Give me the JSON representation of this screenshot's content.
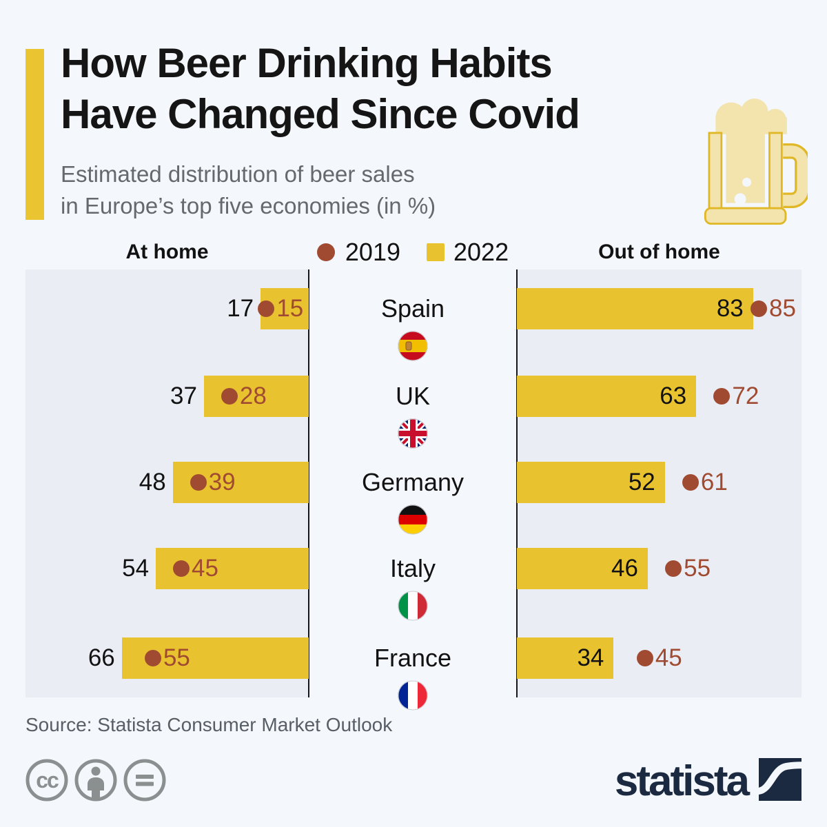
{
  "header": {
    "title_line1": "How Beer Drinking Habits",
    "title_line2": "Have Changed Since Covid",
    "subtitle_line1": "Estimated distribution of beer sales",
    "subtitle_line2": "in Europe’s top five economies (in %)",
    "accent_color": "#eac431",
    "decoration_icon": "beer-mug-icon"
  },
  "legend": {
    "left_header": "At home",
    "right_header": "Out of home",
    "series_2019_label": "2019",
    "series_2022_label": "2022"
  },
  "chart_data": {
    "type": "bar",
    "orientation": "diverging-horizontal",
    "unit": "%",
    "axis_range": [
      0,
      100
    ],
    "series_names": [
      "2019",
      "2022"
    ],
    "categories": [
      "Spain",
      "UK",
      "Germany",
      "Italy",
      "France"
    ],
    "colors": {
      "series_2019": "#a04b31",
      "series_2022": "#e9c32f"
    },
    "rows": [
      {
        "country": "Spain",
        "flag_icon": "spain-flag-icon",
        "at_home": {
          "v2022": 17,
          "v2019": 15
        },
        "out_of_home": {
          "v2022": 83,
          "v2019": 85
        }
      },
      {
        "country": "UK",
        "flag_icon": "uk-flag-icon",
        "at_home": {
          "v2022": 37,
          "v2019": 28
        },
        "out_of_home": {
          "v2022": 63,
          "v2019": 72
        }
      },
      {
        "country": "Germany",
        "flag_icon": "germany-flag-icon",
        "at_home": {
          "v2022": 48,
          "v2019": 39
        },
        "out_of_home": {
          "v2022": 52,
          "v2019": 61
        }
      },
      {
        "country": "Italy",
        "flag_icon": "italy-flag-icon",
        "at_home": {
          "v2022": 54,
          "v2019": 45
        },
        "out_of_home": {
          "v2022": 46,
          "v2019": 55
        }
      },
      {
        "country": "France",
        "flag_icon": "france-flag-icon",
        "at_home": {
          "v2022": 66,
          "v2019": 55
        },
        "out_of_home": {
          "v2022": 34,
          "v2019": 45
        }
      }
    ]
  },
  "footer": {
    "source": "Source: Statista Consumer Market Outlook",
    "license_icons": [
      "cc-icon",
      "attribution-person-icon",
      "equals-sign-icon"
    ],
    "brand": "statista",
    "brand_color": "#1b2a41"
  }
}
